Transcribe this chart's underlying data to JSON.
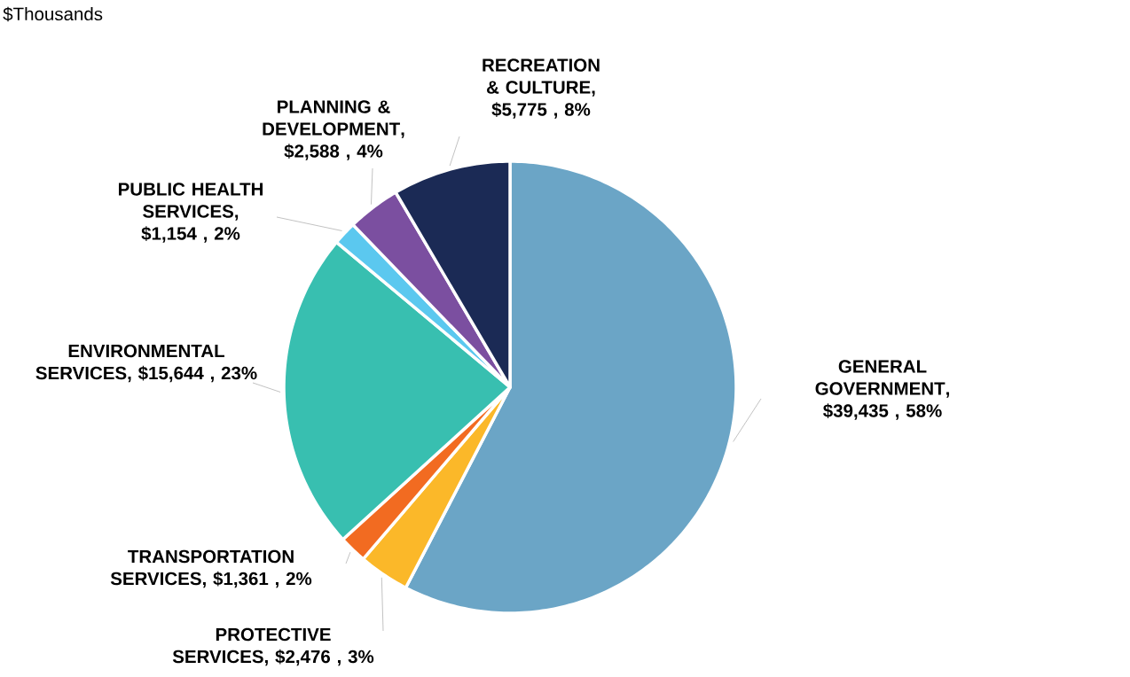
{
  "chart_data": {
    "type": "pie",
    "title": "$Thousands",
    "categories": [
      "GENERAL GOVERNMENT",
      "PROTECTIVE SERVICES",
      "TRANSPORTATION SERVICES",
      "ENVIRONMENTAL SERVICES",
      "PUBLIC HEALTH SERVICES",
      "PLANNING & DEVELOPMENT",
      "RECREATION & CULTURE"
    ],
    "values": [
      39435,
      2476,
      1361,
      15644,
      1154,
      2588,
      5775
    ],
    "colors": [
      "#6ba5c6",
      "#fbb829",
      "#f26b21",
      "#38bfb0",
      "#5bc8ef",
      "#7b4fa0",
      "#1b2a55"
    ],
    "value_labels": [
      ", $39,435 , 58%",
      ", $2,476 , 3%",
      ", $1,361 , 2%",
      ", $15,644 , 23%",
      ", $1,154 , 2%",
      ", $2,588 , 4%",
      ", $5,775 , 8%"
    ]
  }
}
